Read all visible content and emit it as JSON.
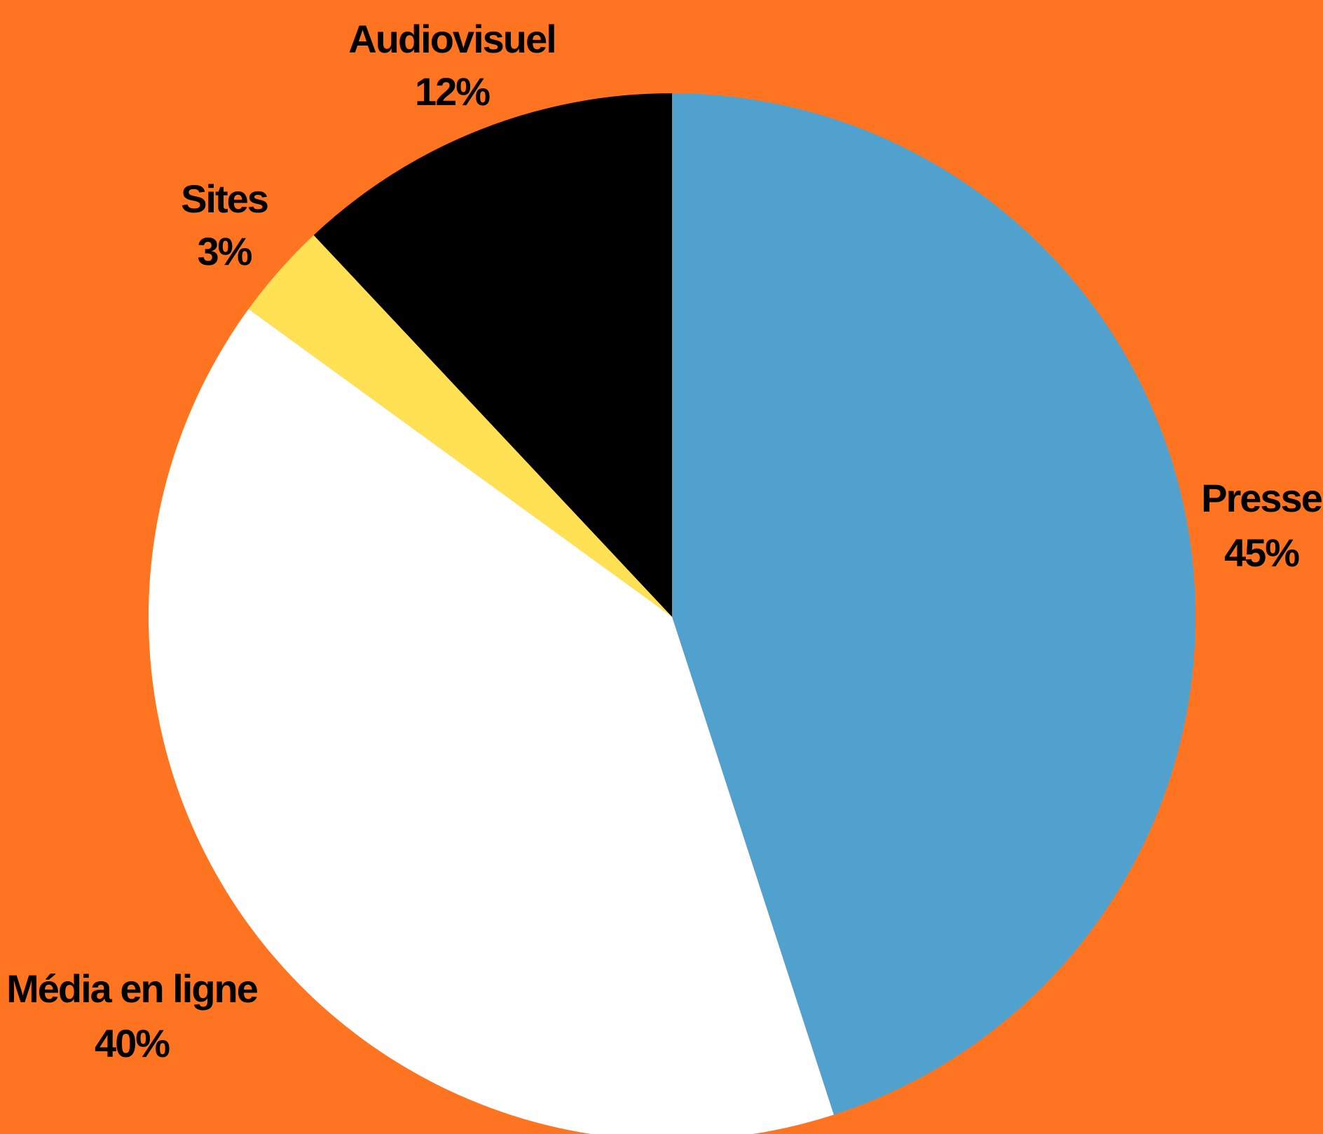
{
  "chart_data": {
    "type": "pie",
    "title": "",
    "start_angle_deg": 0,
    "direction": "clockwise",
    "background_color": "#FF7421",
    "slices": [
      {
        "label": "Presse",
        "value": 45,
        "display": "45%",
        "color": "#51A1CF"
      },
      {
        "label": "Média en ligne",
        "value": 40,
        "display": "40%",
        "color": "#FFFFFF"
      },
      {
        "label": "Sites",
        "value": 3,
        "display": "3%",
        "color": "#FFE153"
      },
      {
        "label": "Audiovisuel",
        "value": 12,
        "display": "12%",
        "color": "#000000"
      }
    ]
  }
}
